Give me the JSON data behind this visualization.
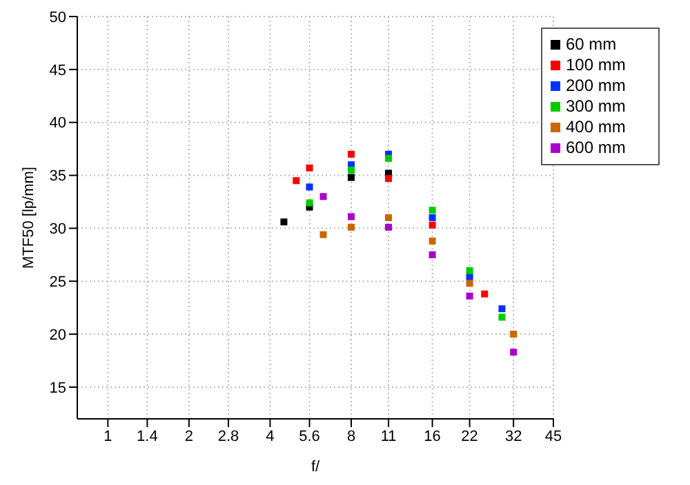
{
  "chart_data": {
    "type": "scatter",
    "xlabel": "f/",
    "ylabel": "MTF50 [lp/mm]",
    "log": "x",
    "xlim": [
      0.77,
      45
    ],
    "xticks": [
      1,
      1.4,
      2,
      2.8,
      4,
      5.6,
      8,
      11,
      16,
      22,
      32,
      45
    ],
    "ylim": [
      12,
      50
    ],
    "yticks": [
      15,
      20,
      25,
      30,
      35,
      40,
      45,
      50
    ],
    "grid": true,
    "legend": "top right",
    "marker": "square",
    "series": [
      {
        "name": "60 mm",
        "color": "#000000",
        "x": [
          4.5,
          5.6,
          8,
          11
        ],
        "values": [
          30.6,
          32.0,
          34.8,
          35.2
        ]
      },
      {
        "name": "100 mm",
        "color": "#ff0000",
        "x": [
          5,
          5.6,
          8,
          11,
          16,
          25
        ],
        "values": [
          34.5,
          35.7,
          37.0,
          34.7,
          30.3,
          23.8
        ]
      },
      {
        "name": "200 mm",
        "color": "#0033ff",
        "x": [
          5.6,
          8,
          11,
          16,
          22,
          29
        ],
        "values": [
          33.9,
          36.0,
          37.0,
          31.0,
          25.4,
          22.4
        ]
      },
      {
        "name": "300 mm",
        "color": "#00cc00",
        "x": [
          5.6,
          8,
          11,
          16,
          22,
          29
        ],
        "values": [
          32.4,
          35.5,
          36.6,
          31.7,
          26.0,
          21.6
        ]
      },
      {
        "name": "400 mm",
        "color": "#cc6600",
        "x": [
          6.3,
          8,
          11,
          16,
          22,
          32
        ],
        "values": [
          29.4,
          30.1,
          31.0,
          28.8,
          24.8,
          20.0
        ]
      },
      {
        "name": "600 mm",
        "color": "#aa00cc",
        "x": [
          6.3,
          8,
          11,
          16,
          22,
          32
        ],
        "values": [
          33.0,
          31.1,
          30.1,
          27.5,
          23.6,
          18.3
        ]
      }
    ]
  }
}
